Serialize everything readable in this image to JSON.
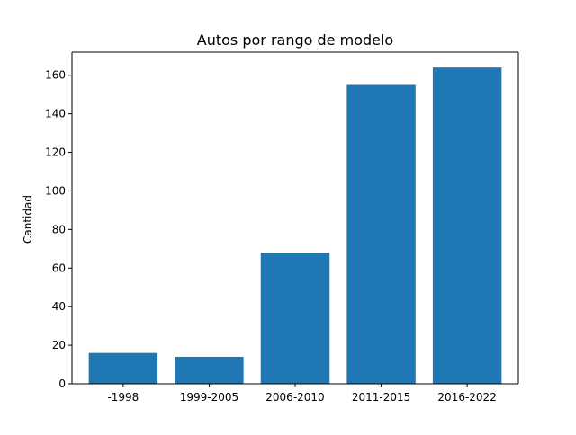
{
  "chart_data": {
    "type": "bar",
    "title": "Autos por rango de modelo",
    "xlabel": "",
    "ylabel": "Cantidad",
    "categories": [
      "-1998",
      "1999-2005",
      "2006-2010",
      "2011-2015",
      "2016-2022"
    ],
    "values": [
      16,
      14,
      68,
      155,
      164
    ],
    "ylim": [
      0,
      172
    ],
    "yticks": [
      0,
      20,
      40,
      60,
      80,
      100,
      120,
      140,
      160
    ],
    "bar_color": "#1f77b4",
    "grid": false,
    "legend": "none"
  }
}
